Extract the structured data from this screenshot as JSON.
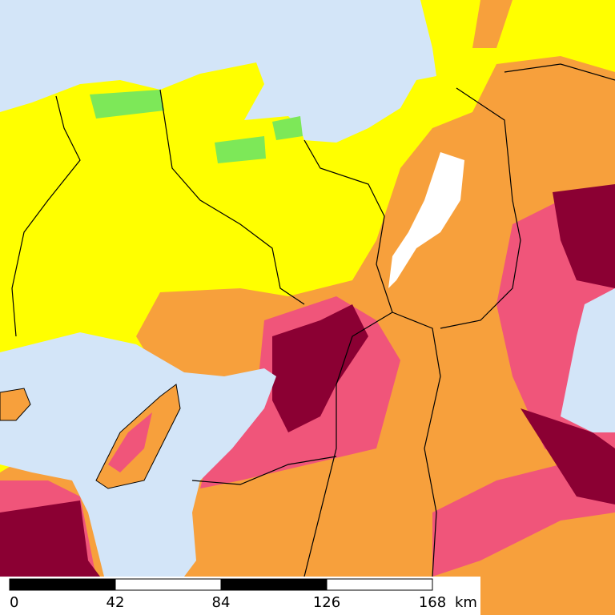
{
  "scale_bar": {
    "ticks": [
      0,
      42,
      84,
      126,
      168
    ],
    "unit": "km"
  }
}
